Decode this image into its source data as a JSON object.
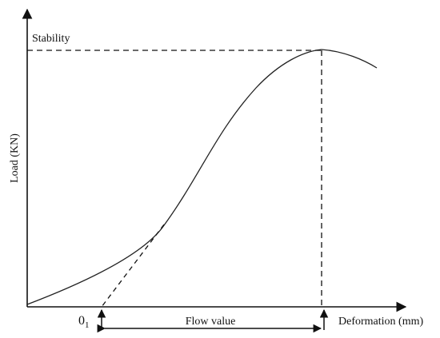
{
  "diagram": {
    "y_axis_label": "Load (KN)",
    "x_axis_label": "Deformation (mm)",
    "stability_label": "Stability",
    "origin_label_main": "0",
    "origin_label_sub": "1",
    "flow_value_label": "Flow value"
  }
}
